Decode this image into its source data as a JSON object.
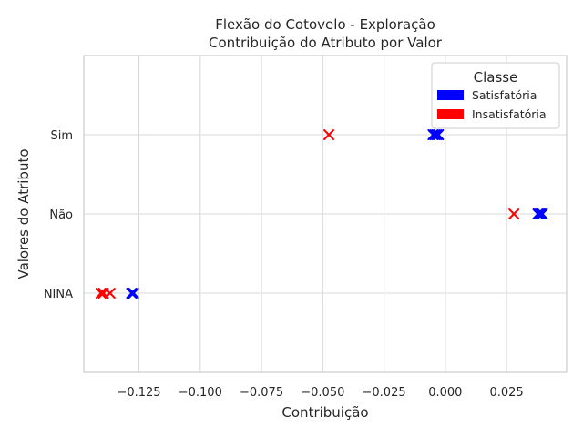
{
  "chart_data": {
    "type": "scatter",
    "title_lines": [
      "Flexão do Cotovelo - Exploração",
      "Contribuição do Atributo por Valor"
    ],
    "xlabel": "Contribuição",
    "ylabel": "Valores do Atributo",
    "categories": [
      "NINA",
      "Não",
      "Sim"
    ],
    "xlim": [
      -0.1475,
      0.0495
    ],
    "xticks": [
      {
        "value": -0.125,
        "label": "−0.125"
      },
      {
        "value": -0.1,
        "label": "−0.100"
      },
      {
        "value": -0.075,
        "label": "−0.075"
      },
      {
        "value": -0.05,
        "label": "−0.050"
      },
      {
        "value": -0.025,
        "label": "−0.025"
      },
      {
        "value": 0.0,
        "label": "0.000"
      },
      {
        "value": 0.025,
        "label": "0.025"
      }
    ],
    "grid": true,
    "legend": {
      "title": "Classe",
      "placement": "top-right",
      "entries": [
        {
          "label": "Satisfatória",
          "color": "#0000ff"
        },
        {
          "label": "Insatisfatória",
          "color": "#ff0000"
        }
      ]
    },
    "series": [
      {
        "name": "Satisfatória",
        "color": "#0000ff",
        "marker": "x",
        "points": [
          {
            "x": -0.005,
            "y": "Sim"
          },
          {
            "x": -0.0042,
            "y": "Sim"
          },
          {
            "x": -0.0035,
            "y": "Sim"
          },
          {
            "x": -0.0028,
            "y": "Sim"
          },
          {
            "x": 0.0378,
            "y": "Não"
          },
          {
            "x": 0.0384,
            "y": "Não"
          },
          {
            "x": 0.039,
            "y": "Não"
          },
          {
            "x": 0.0396,
            "y": "Não"
          },
          {
            "x": -0.128,
            "y": "NINA"
          },
          {
            "x": -0.1272,
            "y": "NINA"
          }
        ]
      },
      {
        "name": "Insatisfatória",
        "color": "#ff0000",
        "marker": "x",
        "points": [
          {
            "x": -0.0475,
            "y": "Sim"
          },
          {
            "x": 0.028,
            "y": "Não"
          },
          {
            "x": -0.1405,
            "y": "NINA"
          },
          {
            "x": -0.1395,
            "y": "NINA"
          },
          {
            "x": -0.1368,
            "y": "NINA"
          }
        ]
      }
    ]
  }
}
